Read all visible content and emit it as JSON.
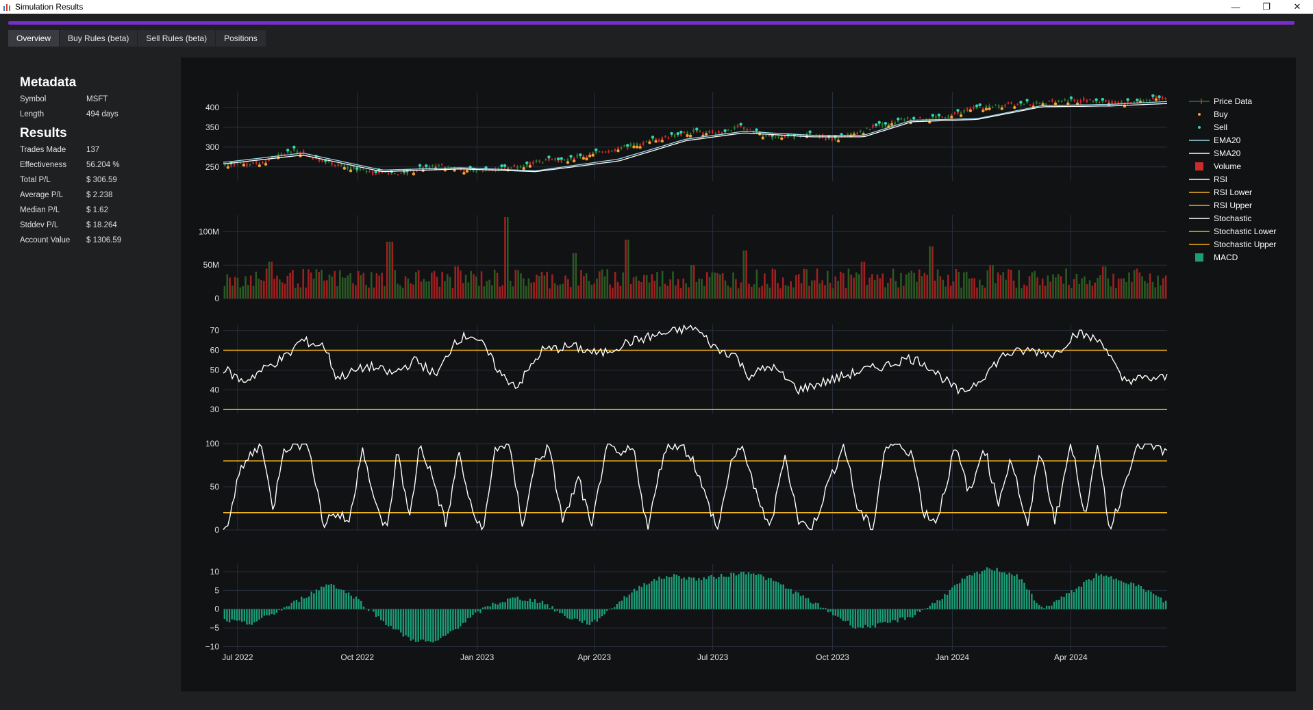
{
  "window": {
    "title": "Simulation Results",
    "controls": {
      "minimize": "—",
      "restore": "❐",
      "close": "✕"
    }
  },
  "colors": {
    "accent": "#7a2ccf",
    "price_up": "#2d7a2d",
    "price_down": "#cc2b2b",
    "buy": "#f0a030",
    "sell": "#2fd6b0",
    "ema": "#9ad8e8",
    "sma": "#ffffff",
    "guide": "#f0b21e",
    "macd": "#1a9e78"
  },
  "tabs": [
    {
      "label": "Overview",
      "active": true
    },
    {
      "label": "Buy Rules (beta)",
      "active": false
    },
    {
      "label": "Sell Rules (beta)",
      "active": false
    },
    {
      "label": "Positions",
      "active": false
    }
  ],
  "metadata": {
    "heading": "Metadata",
    "rows": [
      {
        "label": "Symbol",
        "value": "MSFT"
      },
      {
        "label": "Length",
        "value": "494 days"
      }
    ]
  },
  "results": {
    "heading": "Results",
    "rows": [
      {
        "label": "Trades Made",
        "value": "137"
      },
      {
        "label": "Effectiveness",
        "value": "56.204 %"
      },
      {
        "label": "Total P/L",
        "value": "$ 306.59"
      },
      {
        "label": "Average P/L",
        "value": "$ 2.238"
      },
      {
        "label": "Median P/L",
        "value": "$ 1.62"
      },
      {
        "label": "Stddev P/L",
        "value": "$ 18.264"
      },
      {
        "label": "Account Value",
        "value": "$ 1306.59"
      }
    ]
  },
  "chart_data": {
    "type": "line",
    "x_ticks": [
      "Jul 2022",
      "Oct 2022",
      "Jan 2023",
      "Apr 2023",
      "Jul 2023",
      "Oct 2023",
      "Jan 2024",
      "Apr 2024"
    ],
    "legend": {
      "placement": "right",
      "entries": [
        {
          "name": "Price Data",
          "kind": "candle",
          "color": "#2d7a2d"
        },
        {
          "name": "Buy",
          "kind": "dot",
          "color": "#f0a030"
        },
        {
          "name": "Sell",
          "kind": "dot",
          "color": "#2fd6b0"
        },
        {
          "name": "EMA20",
          "kind": "line",
          "color": "#9ad8e8"
        },
        {
          "name": "SMA20",
          "kind": "line",
          "color": "#ffffff"
        },
        {
          "name": "Volume",
          "kind": "square",
          "color": "#cc2b2b"
        },
        {
          "name": "RSI",
          "kind": "line",
          "color": "#ffffff"
        },
        {
          "name": "RSI Lower",
          "kind": "line",
          "color": "#f0b21e"
        },
        {
          "name": "RSI Upper",
          "kind": "line",
          "color": "#f0b21e"
        },
        {
          "name": "Stochastic",
          "kind": "line",
          "color": "#ffffff"
        },
        {
          "name": "Stochastic Lower",
          "kind": "line",
          "color": "#f0b21e"
        },
        {
          "name": "Stochastic Upper",
          "kind": "line",
          "color": "#f0b21e"
        },
        {
          "name": "MACD",
          "kind": "square",
          "color": "#1a9e78"
        }
      ]
    },
    "panels": {
      "price": {
        "ylim": [
          215,
          440
        ],
        "yticks": [
          250,
          300,
          350,
          400
        ],
        "series": [
          {
            "name": "Price Data",
            "x": [
              "2022-06-22",
              "2022-07-15",
              "2022-08-15",
              "2022-09-01",
              "2022-09-20",
              "2022-10-12",
              "2022-11-03",
              "2022-12-01",
              "2022-12-28",
              "2023-01-20",
              "2023-02-15",
              "2023-03-10",
              "2023-04-03",
              "2023-05-01",
              "2023-05-26",
              "2023-06-15",
              "2023-07-10",
              "2023-07-20",
              "2023-08-15",
              "2023-09-15",
              "2023-10-03",
              "2023-11-01",
              "2023-11-25",
              "2023-12-20",
              "2024-01-15",
              "2024-02-10",
              "2024-03-05",
              "2024-04-01",
              "2024-04-25",
              "2024-05-15",
              "2024-06-12"
            ],
            "values": [
              255,
              258,
              292,
              270,
              250,
              236,
              232,
              255,
              240,
              245,
              262,
              270,
              285,
              305,
              325,
              338,
              335,
              355,
              325,
              330,
              318,
              350,
              370,
              372,
              395,
              408,
              410,
              420,
              415,
              412,
              425
            ]
          },
          {
            "name": "EMA20",
            "x": [
              "2022-06-22",
              "2022-08-20",
              "2022-10-20",
              "2022-12-20",
              "2023-02-15",
              "2023-04-20",
              "2023-06-10",
              "2023-07-25",
              "2023-09-15",
              "2023-10-25",
              "2023-12-01",
              "2024-01-20",
              "2024-03-10",
              "2024-05-01",
              "2024-06-12"
            ],
            "values": [
              262,
              285,
              242,
              248,
              240,
              270,
              320,
              340,
              330,
              330,
              368,
              372,
              405,
              408,
              415
            ]
          },
          {
            "name": "SMA20",
            "x": [
              "2022-06-22",
              "2022-08-20",
              "2022-10-20",
              "2022-12-20",
              "2023-02-15",
              "2023-04-20",
              "2023-06-10",
              "2023-07-25",
              "2023-09-15",
              "2023-10-25",
              "2023-12-01",
              "2024-01-20",
              "2024-03-10",
              "2024-05-01",
              "2024-06-12"
            ],
            "values": [
              258,
              280,
              238,
              245,
              238,
              265,
              316,
              336,
              326,
              326,
              364,
              370,
              402,
              404,
              410
            ]
          }
        ]
      },
      "volume": {
        "ylim": [
          0,
          125
        ],
        "yticks": [
          0,
          50,
          100
        ],
        "ytick_labels": [
          "0",
          "50M",
          "100M"
        ],
        "spikes": [
          {
            "x": "2022-07-26",
            "value": 55
          },
          {
            "x": "2022-10-26",
            "value": 85
          },
          {
            "x": "2022-12-16",
            "value": 48
          },
          {
            "x": "2023-01-23",
            "value": 122
          },
          {
            "x": "2023-03-17",
            "value": 68
          },
          {
            "x": "2023-04-26",
            "value": 88
          },
          {
            "x": "2023-06-16",
            "value": 50
          },
          {
            "x": "2023-07-26",
            "value": 72
          },
          {
            "x": "2023-10-25",
            "value": 55
          },
          {
            "x": "2023-12-15",
            "value": 78
          },
          {
            "x": "2024-01-31",
            "value": 50
          },
          {
            "x": "2024-04-26",
            "value": 48
          }
        ],
        "baseline_range": [
          15,
          45
        ]
      },
      "rsi": {
        "ylim": [
          28,
          73
        ],
        "yticks": [
          30,
          40,
          50,
          60,
          70
        ],
        "lower": 30,
        "upper": 60,
        "x": [
          "2022-06-22",
          "2022-07-05",
          "2022-07-25",
          "2022-08-10",
          "2022-08-18",
          "2022-09-06",
          "2022-09-15",
          "2022-10-10",
          "2022-10-28",
          "2022-11-15",
          "2022-12-01",
          "2022-12-15",
          "2022-12-28",
          "2023-01-06",
          "2023-01-20",
          "2023-02-01",
          "2023-02-20",
          "2023-03-15",
          "2023-04-05",
          "2023-04-27",
          "2023-05-15",
          "2023-06-05",
          "2023-06-16",
          "2023-07-05",
          "2023-07-18",
          "2023-07-28",
          "2023-08-15",
          "2023-09-05",
          "2023-09-25",
          "2023-10-05",
          "2023-10-25",
          "2023-11-10",
          "2023-11-28",
          "2023-12-10",
          "2023-12-28",
          "2024-01-08",
          "2024-01-22",
          "2024-02-10",
          "2024-03-01",
          "2024-03-20",
          "2024-04-05",
          "2024-04-26",
          "2024-05-10",
          "2024-06-12"
        ],
        "values": [
          50,
          44,
          52,
          58,
          65,
          62,
          46,
          52,
          48,
          55,
          47,
          65,
          68,
          62,
          47,
          42,
          60,
          62,
          58,
          64,
          67,
          70,
          72,
          60,
          58,
          47,
          52,
          40,
          44,
          46,
          50,
          52,
          56,
          54,
          44,
          38,
          45,
          58,
          60,
          58,
          69,
          64,
          45,
          46
        ]
      },
      "stochastic": {
        "ylim": [
          0,
          100
        ],
        "yticks": [
          0,
          50,
          100
        ],
        "lower": 20,
        "upper": 80,
        "x": [
          "2022-06-22",
          "2022-07-01",
          "2022-07-10",
          "2022-07-20",
          "2022-07-28",
          "2022-08-05",
          "2022-08-15",
          "2022-08-25",
          "2022-09-05",
          "2022-09-12",
          "2022-09-25",
          "2022-10-05",
          "2022-10-14",
          "2022-10-24",
          "2022-11-01",
          "2022-11-10",
          "2022-11-18",
          "2022-11-28",
          "2022-12-08",
          "2022-12-18",
          "2022-12-28",
          "2023-01-06",
          "2023-01-15",
          "2023-01-25",
          "2023-02-05",
          "2023-02-15",
          "2023-02-25",
          "2023-03-08",
          "2023-03-20",
          "2023-03-30",
          "2023-04-10",
          "2023-04-20",
          "2023-05-01",
          "2023-05-12",
          "2023-05-25",
          "2023-06-05",
          "2023-06-15",
          "2023-06-25",
          "2023-07-05",
          "2023-07-15",
          "2023-07-25",
          "2023-08-05",
          "2023-08-15",
          "2023-08-25",
          "2023-09-05",
          "2023-09-15",
          "2023-09-28",
          "2023-10-10",
          "2023-10-20",
          "2023-11-01",
          "2023-11-10",
          "2023-11-20",
          "2023-12-01",
          "2023-12-10",
          "2023-12-20",
          "2024-01-03",
          "2024-01-15",
          "2024-01-25",
          "2024-02-05",
          "2024-02-15",
          "2024-02-28",
          "2024-03-08",
          "2024-03-20",
          "2024-04-01",
          "2024-04-12",
          "2024-04-22",
          "2024-05-01",
          "2024-05-10",
          "2024-05-20",
          "2024-05-30",
          "2024-06-12"
        ],
        "values": [
          0,
          60,
          85,
          100,
          20,
          95,
          100,
          98,
          5,
          20,
          10,
          100,
          30,
          0,
          95,
          10,
          100,
          60,
          5,
          90,
          20,
          0,
          95,
          100,
          5,
          80,
          95,
          10,
          60,
          0,
          98,
          85,
          95,
          0,
          95,
          100,
          85,
          40,
          0,
          80,
          95,
          30,
          5,
          90,
          10,
          0,
          55,
          100,
          25,
          0,
          95,
          100,
          90,
          20,
          10,
          95,
          40,
          100,
          30,
          85,
          0,
          95,
          10,
          100,
          20,
          95,
          0,
          40,
          95,
          100,
          90
        ]
      },
      "macd": {
        "ylim": [
          -11,
          12
        ],
        "yticks": [
          -10,
          -5,
          0,
          5,
          10
        ],
        "x": [
          "2022-06-22",
          "2022-07-10",
          "2022-07-30",
          "2022-08-20",
          "2022-09-10",
          "2022-09-30",
          "2022-10-20",
          "2022-11-10",
          "2022-11-30",
          "2022-12-20",
          "2023-01-10",
          "2023-01-30",
          "2023-02-20",
          "2023-03-10",
          "2023-03-30",
          "2023-04-20",
          "2023-05-10",
          "2023-05-30",
          "2023-06-20",
          "2023-07-10",
          "2023-07-30",
          "2023-08-20",
          "2023-09-10",
          "2023-09-30",
          "2023-10-20",
          "2023-11-10",
          "2023-11-30",
          "2023-12-20",
          "2024-01-10",
          "2024-01-30",
          "2024-02-20",
          "2024-03-10",
          "2024-03-30",
          "2024-04-20",
          "2024-05-10",
          "2024-05-30",
          "2024-06-12"
        ],
        "values": [
          -3,
          -4,
          -1,
          3,
          7,
          3,
          -3,
          -8,
          -9,
          -4,
          1,
          3,
          2,
          -2,
          -4,
          2,
          7,
          9,
          8,
          9,
          10,
          7,
          3,
          -1,
          -5,
          -4,
          -2,
          2,
          8,
          11,
          9,
          0,
          4,
          9,
          8,
          5,
          2
        ]
      }
    }
  }
}
